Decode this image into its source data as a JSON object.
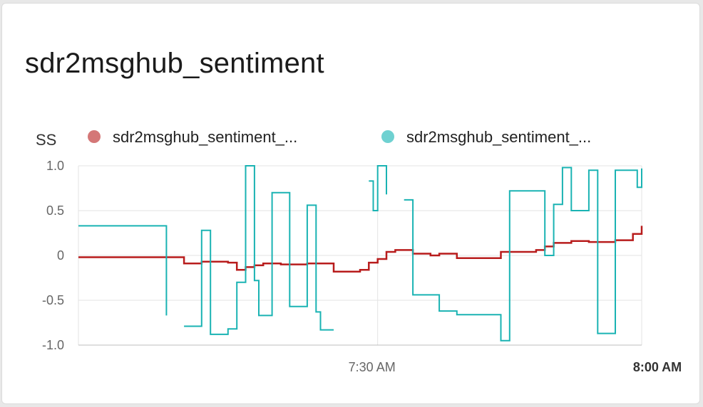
{
  "card": {
    "title": "sdr2msghub_sentiment"
  },
  "chart_data": {
    "type": "line",
    "ylabel": "SS",
    "ylim": [
      -1.0,
      1.0
    ],
    "y_ticks": [
      {
        "value": 1.0,
        "label": "1.0"
      },
      {
        "value": 0.5,
        "label": "0.5"
      },
      {
        "value": 0.0,
        "label": "0"
      },
      {
        "value": -0.5,
        "label": "-0.5"
      },
      {
        "value": -1.0,
        "label": "-1.0"
      }
    ],
    "xlim": [
      "06:56",
      "08:00"
    ],
    "x_ticks": [
      {
        "value": "07:30",
        "label": "7:30 AM",
        "bold": false
      },
      {
        "value": "08:00",
        "label": "8:00 AM",
        "bold": true
      }
    ],
    "grid": true,
    "legend_position": "top",
    "series": [
      {
        "name": "sdr2msghub_sentiment_...",
        "color": "#b81c1c",
        "legend_color": "#d47777",
        "step": true,
        "segments": [
          [
            [
              "06:56",
              -0.02
            ],
            [
              "07:07",
              -0.02
            ],
            [
              "07:08",
              -0.09
            ],
            [
              "07:10",
              -0.07
            ],
            [
              "07:13",
              -0.08
            ],
            [
              "07:14",
              -0.16
            ],
            [
              "07:15",
              -0.13
            ],
            [
              "07:16",
              -0.11
            ],
            [
              "07:17",
              -0.09
            ],
            [
              "07:19",
              -0.1
            ],
            [
              "07:22",
              -0.09
            ],
            [
              "07:24",
              -0.09
            ],
            [
              "07:25",
              -0.18
            ],
            [
              "07:28",
              -0.16
            ],
            [
              "07:29",
              -0.08
            ],
            [
              "07:30",
              -0.04
            ],
            [
              "07:31",
              0.04
            ],
            [
              "07:32",
              0.06
            ],
            [
              "07:34",
              0.02
            ],
            [
              "07:36",
              0.0
            ],
            [
              "07:37",
              0.02
            ],
            [
              "07:39",
              -0.03
            ],
            [
              "07:44",
              0.04
            ],
            [
              "07:48",
              0.06
            ],
            [
              "07:49",
              0.1
            ],
            [
              "07:50",
              0.14
            ],
            [
              "07:52",
              0.16
            ],
            [
              "07:54",
              0.15
            ],
            [
              "07:57",
              0.17
            ],
            [
              "07:59",
              0.24
            ],
            [
              "08:00",
              0.33
            ]
          ]
        ]
      },
      {
        "name": "sdr2msghub_sentiment_...",
        "color": "#1ab3b3",
        "legend_color": "#6fd1d1",
        "step": true,
        "segments": [
          [
            [
              "06:56",
              0.33
            ],
            [
              "07:06",
              -0.67
            ]
          ],
          [
            [
              "07:08",
              -0.79
            ],
            [
              "07:10",
              0.28
            ],
            [
              "07:11",
              -0.88
            ],
            [
              "07:13",
              -0.82
            ],
            [
              "07:14",
              -0.3
            ],
            [
              "07:15",
              1.0
            ],
            [
              "07:16",
              -0.28
            ],
            [
              "07:16.5",
              -0.67
            ],
            [
              "07:18",
              0.7
            ],
            [
              "07:20",
              -0.57
            ],
            [
              "07:22",
              0.56
            ],
            [
              "07:23",
              -0.63
            ],
            [
              "07:23.5",
              -0.83
            ],
            [
              "07:25",
              -0.83
            ]
          ],
          [
            [
              "07:29",
              0.83
            ],
            [
              "07:29.5",
              0.5
            ],
            [
              "07:30",
              1.0
            ],
            [
              "07:31",
              0.68
            ]
          ],
          [
            [
              "07:33",
              0.62
            ],
            [
              "07:34",
              -0.44
            ],
            [
              "07:37",
              -0.62
            ],
            [
              "07:39",
              -0.66
            ],
            [
              "07:44",
              -0.95
            ],
            [
              "07:45",
              0.72
            ],
            [
              "07:49",
              0.0
            ],
            [
              "07:50",
              0.57
            ],
            [
              "07:51",
              0.98
            ],
            [
              "07:52",
              0.5
            ],
            [
              "07:54",
              0.95
            ],
            [
              "07:55",
              -0.87
            ],
            [
              "07:57",
              0.95
            ],
            [
              "07:59.5",
              0.76
            ],
            [
              "08:00",
              0.97
            ]
          ]
        ]
      }
    ]
  }
}
